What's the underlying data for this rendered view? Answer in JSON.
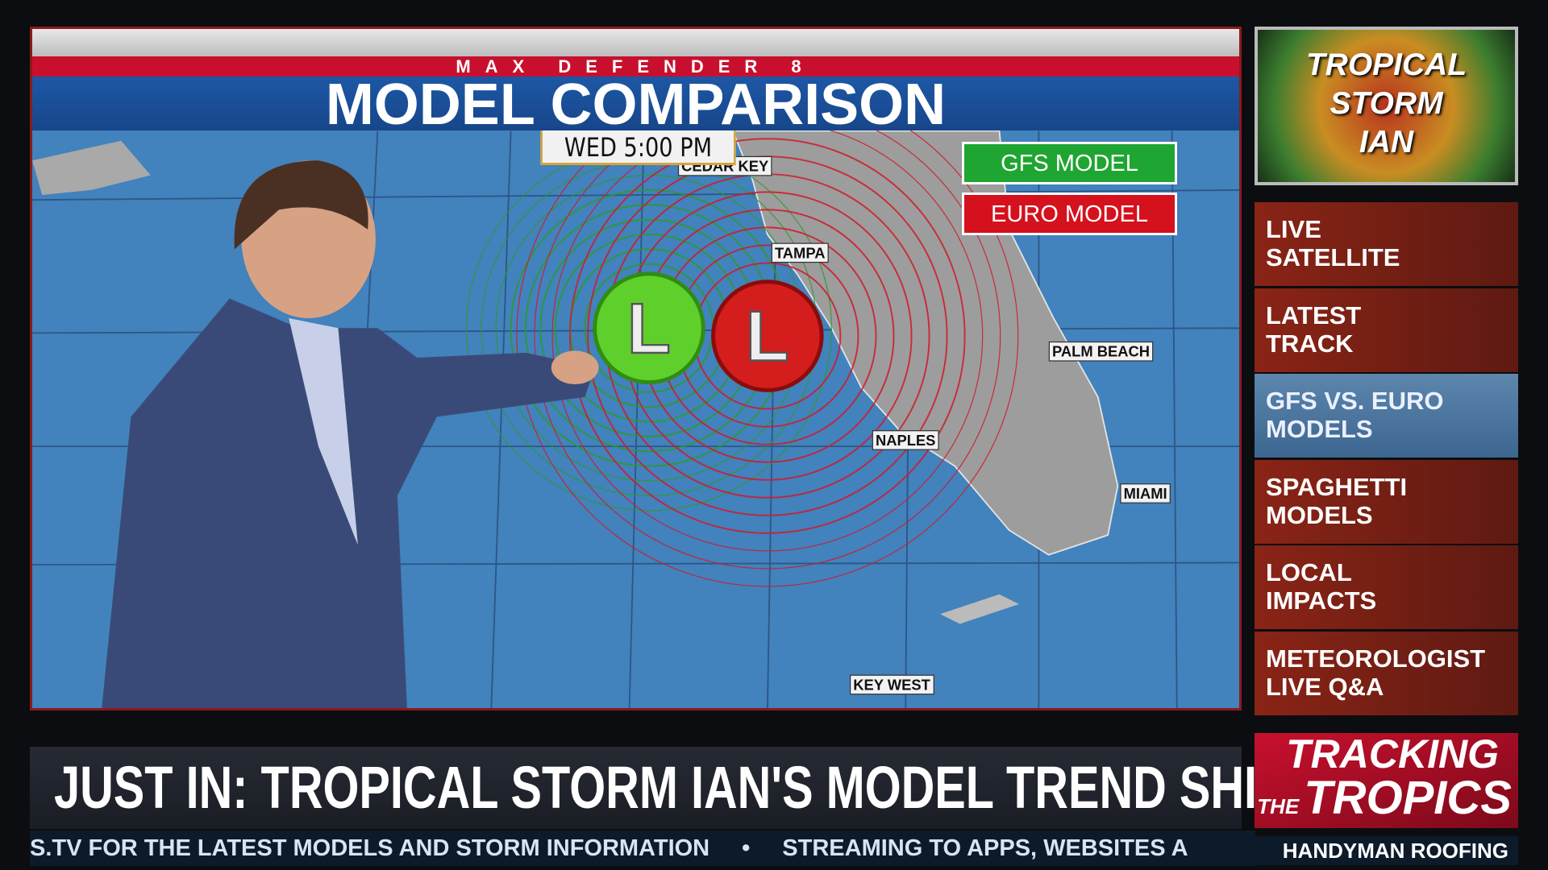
{
  "header": {
    "network": "MAX DEFENDER 8",
    "title": "MODEL COMPARISON",
    "time": "WED 5:00 PM"
  },
  "legend": [
    "GFS MODEL",
    "EURO MODEL"
  ],
  "map_labels": [
    "CEDAR KEY",
    "TAMPA",
    "PALM BEACH",
    "NAPLES",
    "MIAMI",
    "KEY WEST"
  ],
  "storm_markers": [
    "L",
    "L"
  ],
  "sidebar": {
    "title": [
      "TROPICAL",
      "STORM",
      "IAN"
    ],
    "items": [
      [
        "LIVE",
        "SATELLITE"
      ],
      [
        "LATEST",
        "TRACK"
      ],
      [
        "GFS VS. EURO",
        "MODELS"
      ],
      [
        "SPAGHETTI",
        "MODELS"
      ],
      [
        "LOCAL",
        "IMPACTS"
      ],
      [
        "METEOROLOGIST",
        "LIVE Q&A"
      ]
    ]
  },
  "headline": "JUST IN: TROPICAL STORM IAN'S MODEL TREND SHIFTS EAST",
  "crawl": [
    "S.TV FOR THE LATEST MODELS AND STORM INFORMATION",
    "•",
    "STREAMING TO APPS, WEBSITES A"
  ],
  "logo": {
    "line1": "TRACKING",
    "line2": "THE",
    "line3": "TROPICS"
  },
  "sponsor": "HANDYMAN ROOFING"
}
